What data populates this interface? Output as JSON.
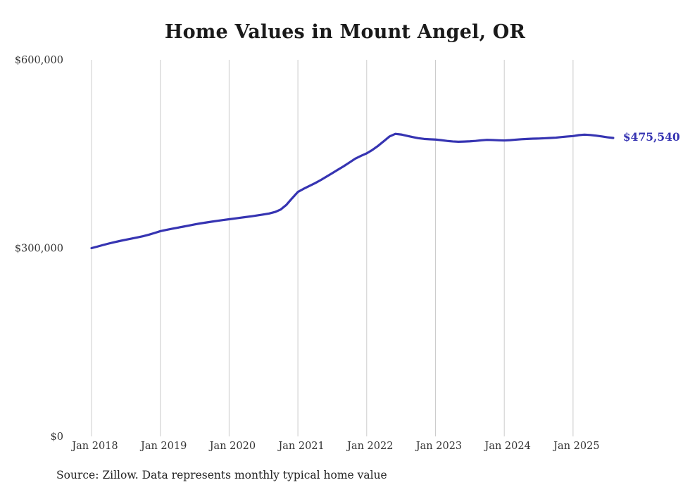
{
  "page": {
    "title": "Home Values in Mount Angel, OR",
    "source_note": "Source: Zillow. Data represents monthly typical home value",
    "end_label": "$475,540"
  },
  "chart_data": {
    "type": "line",
    "title": "Home Values in Mount Angel, OR",
    "xlabel": "",
    "ylabel": "",
    "ylim": [
      0,
      600000
    ],
    "y_ticks": [
      0,
      300000,
      600000
    ],
    "y_tick_labels": [
      "$0",
      "$300,000",
      "$600,000"
    ],
    "x_tick_labels": [
      "Jan 2018",
      "Jan 2019",
      "Jan 2020",
      "Jan 2021",
      "Jan 2022",
      "Jan 2023",
      "Jan 2024",
      "Jan 2025"
    ],
    "grid": "vertical-only",
    "legend": "none",
    "line_color": "#3634b2",
    "start_month": "2018-01",
    "end_month": "2025-08",
    "frequency": "monthly",
    "last_point": {
      "month": "2025-08",
      "value": 475540,
      "label": "$475,540"
    },
    "series": [
      {
        "name": "Typical home value",
        "values": [
          300000,
          302400,
          304900,
          307300,
          309500,
          311500,
          313400,
          315200,
          317000,
          319000,
          321400,
          324100,
          327000,
          329000,
          330800,
          332500,
          334200,
          336000,
          337800,
          339400,
          340800,
          342200,
          343500,
          344800,
          346000,
          347200,
          348400,
          349600,
          350800,
          352200,
          353600,
          355200,
          357500,
          361500,
          369000,
          379500,
          389500,
          394500,
          399000,
          403500,
          408500,
          414000,
          419500,
          425000,
          430500,
          436500,
          442500,
          447000,
          451000,
          456500,
          463000,
          470500,
          478000,
          482000,
          481000,
          479000,
          477000,
          475200,
          474000,
          473400,
          473000,
          472000,
          470800,
          470000,
          469500,
          469800,
          470200,
          470800,
          471800,
          472500,
          472200,
          471800,
          471500,
          472000,
          472800,
          473500,
          474000,
          474400,
          474600,
          475000,
          475500,
          476000,
          477000,
          477800,
          478500,
          480000,
          480800,
          480200,
          479200,
          478000,
          476600,
          475540
        ]
      }
    ]
  }
}
